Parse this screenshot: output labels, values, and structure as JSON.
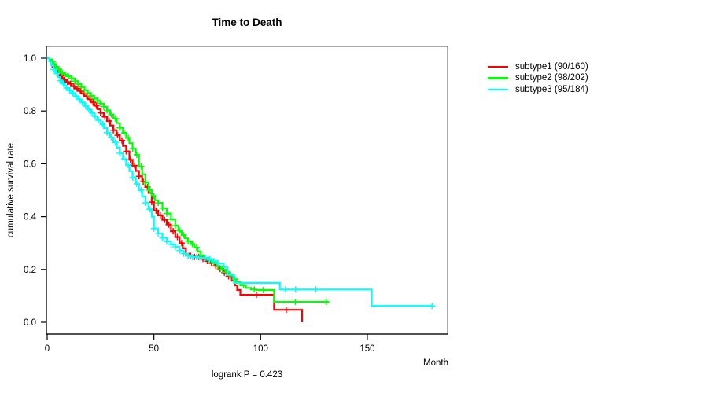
{
  "title": "Time to Death",
  "footer_text": "logrank P = 0.423",
  "axes": {
    "x": {
      "label": "Month",
      "tick_values": [
        0,
        50,
        100,
        150
      ]
    },
    "y": {
      "label": "cumulative survival rate",
      "tick_values": [
        0.0,
        0.2,
        0.4,
        0.6,
        0.8,
        1.0
      ],
      "tick_labels": [
        "0.0",
        "0.2",
        "0.4",
        "0.6",
        "0.8",
        "1.0"
      ]
    }
  },
  "chart_data": {
    "type": "line",
    "variant": "kaplan-meier-step-curves",
    "title": "Time to Death",
    "xlabel": "Month",
    "ylabel": "cumulative survival rate",
    "xlim": [
      0,
      188
    ],
    "ylim": [
      0.0,
      1.0
    ],
    "grid": false,
    "legend_position": "right-outside",
    "annotation": "logrank P = 0.423",
    "censor_mark": "plus",
    "series": [
      {
        "name": "subtype1 (90/160)",
        "color": "#ff0000",
        "points": [
          [
            0,
            1.0
          ],
          [
            1,
            0.99
          ],
          [
            2,
            0.978
          ],
          [
            3,
            0.966
          ],
          [
            4,
            0.954
          ],
          [
            5,
            0.943
          ],
          [
            6,
            0.933
          ],
          [
            7,
            0.925
          ],
          [
            8,
            0.917
          ],
          [
            9,
            0.91
          ],
          [
            10,
            0.903
          ],
          [
            11.5,
            0.894
          ],
          [
            13,
            0.885
          ],
          [
            14.5,
            0.876
          ],
          [
            16,
            0.866
          ],
          [
            17.5,
            0.856
          ],
          [
            19,
            0.845
          ],
          [
            20.5,
            0.833
          ],
          [
            22,
            0.82
          ],
          [
            23.5,
            0.807
          ],
          [
            25,
            0.793
          ],
          [
            26.5,
            0.778
          ],
          [
            28,
            0.762
          ],
          [
            29.5,
            0.745
          ],
          [
            31,
            0.727
          ],
          [
            32.5,
            0.708
          ],
          [
            34,
            0.688
          ],
          [
            35.5,
            0.668
          ],
          [
            37,
            0.647
          ],
          [
            38.5,
            0.615
          ],
          [
            40,
            0.593
          ],
          [
            41.5,
            0.573
          ],
          [
            43,
            0.553
          ],
          [
            44.5,
            0.532
          ],
          [
            46,
            0.512
          ],
          [
            47.5,
            0.49
          ],
          [
            49,
            0.455
          ],
          [
            50,
            0.423
          ],
          [
            52,
            0.405
          ],
          [
            54,
            0.388
          ],
          [
            56,
            0.37
          ],
          [
            58,
            0.345
          ],
          [
            60,
            0.323
          ],
          [
            62,
            0.3
          ],
          [
            63.5,
            0.28
          ],
          [
            65,
            0.26
          ],
          [
            67,
            0.252
          ],
          [
            69,
            0.248
          ],
          [
            72,
            0.24
          ],
          [
            74.5,
            0.232
          ],
          [
            76.5,
            0.224
          ],
          [
            78.5,
            0.214
          ],
          [
            80.5,
            0.202
          ],
          [
            82.5,
            0.188
          ],
          [
            84.5,
            0.174
          ],
          [
            86.5,
            0.157
          ],
          [
            88,
            0.14
          ],
          [
            89,
            0.122
          ],
          [
            90.5,
            0.104
          ],
          [
            106.3,
            0.047
          ],
          [
            119.4,
            0.0
          ]
        ],
        "end_month": 119.4,
        "censor_months": [
          3.5,
          5,
          6.5,
          8,
          9.5,
          11,
          12.5,
          14,
          15.5,
          17,
          18.5,
          20,
          21.5,
          23,
          25,
          27,
          29,
          31,
          33,
          35,
          37,
          39,
          41,
          43,
          45,
          47,
          49,
          51,
          53,
          55,
          57,
          59,
          61,
          63,
          65,
          67,
          69,
          71,
          73,
          75,
          77,
          79,
          81,
          83,
          85,
          98,
          112
        ]
      },
      {
        "name": "subtype2 (98/202)",
        "color": "#00ff00",
        "points": [
          [
            0,
            1.0
          ],
          [
            1,
            0.995
          ],
          [
            2,
            0.987
          ],
          [
            3,
            0.978
          ],
          [
            4,
            0.968
          ],
          [
            5,
            0.958
          ],
          [
            6,
            0.95
          ],
          [
            7,
            0.944
          ],
          [
            8,
            0.939
          ],
          [
            9,
            0.935
          ],
          [
            10,
            0.931
          ],
          [
            11.5,
            0.923
          ],
          [
            13,
            0.913
          ],
          [
            14.5,
            0.902
          ],
          [
            16,
            0.891
          ],
          [
            17.5,
            0.879
          ],
          [
            19,
            0.868
          ],
          [
            20.5,
            0.857
          ],
          [
            22,
            0.847
          ],
          [
            23.5,
            0.838
          ],
          [
            25,
            0.828
          ],
          [
            26.5,
            0.816
          ],
          [
            28,
            0.802
          ],
          [
            29.5,
            0.787
          ],
          [
            31,
            0.771
          ],
          [
            32.5,
            0.754
          ],
          [
            34,
            0.736
          ],
          [
            35.5,
            0.717
          ],
          [
            37,
            0.698
          ],
          [
            38.5,
            0.678
          ],
          [
            40,
            0.657
          ],
          [
            41.5,
            0.634
          ],
          [
            43,
            0.59
          ],
          [
            44.5,
            0.56
          ],
          [
            46,
            0.53
          ],
          [
            47.5,
            0.5
          ],
          [
            49,
            0.478
          ],
          [
            50.5,
            0.462
          ],
          [
            52,
            0.452
          ],
          [
            54,
            0.432
          ],
          [
            56,
            0.412
          ],
          [
            58,
            0.39
          ],
          [
            60,
            0.366
          ],
          [
            61.5,
            0.347
          ],
          [
            63,
            0.33
          ],
          [
            64.5,
            0.318
          ],
          [
            66,
            0.307
          ],
          [
            67.5,
            0.296
          ],
          [
            69,
            0.283
          ],
          [
            70.5,
            0.268
          ],
          [
            72,
            0.253
          ],
          [
            73.5,
            0.243
          ],
          [
            75.5,
            0.236
          ],
          [
            77.5,
            0.225
          ],
          [
            79.5,
            0.212
          ],
          [
            81.5,
            0.2
          ],
          [
            83.5,
            0.19
          ],
          [
            85.5,
            0.177
          ],
          [
            87,
            0.163
          ],
          [
            88.5,
            0.152
          ],
          [
            90.5,
            0.14
          ],
          [
            93,
            0.13
          ],
          [
            95.5,
            0.124
          ],
          [
            98,
            0.122
          ],
          [
            106.3,
            0.077
          ]
        ],
        "end_month": 131.6,
        "censor_months": [
          2.5,
          4,
          5.5,
          7,
          8.5,
          10,
          11.5,
          13,
          14.5,
          16,
          17.5,
          19,
          20.5,
          22,
          23.5,
          25,
          26.5,
          28,
          30,
          32,
          34,
          36,
          38,
          40,
          42,
          44,
          46,
          48,
          50,
          52,
          54,
          56,
          58,
          60,
          62,
          64,
          66,
          68,
          70,
          72,
          74,
          76,
          78,
          80,
          82,
          84,
          86,
          88,
          92,
          97,
          101.3,
          116.3,
          130.8
        ]
      },
      {
        "name": "subtype3 (95/184)",
        "color": "#00ffff",
        "points": [
          [
            0,
            1.0
          ],
          [
            1,
            0.988
          ],
          [
            2,
            0.972
          ],
          [
            3,
            0.957
          ],
          [
            4,
            0.942
          ],
          [
            5,
            0.928
          ],
          [
            6,
            0.915
          ],
          [
            7,
            0.904
          ],
          [
            8,
            0.895
          ],
          [
            9,
            0.887
          ],
          [
            10,
            0.879
          ],
          [
            11.5,
            0.868
          ],
          [
            13,
            0.856
          ],
          [
            14.5,
            0.844
          ],
          [
            16,
            0.832
          ],
          [
            17.5,
            0.819
          ],
          [
            19,
            0.806
          ],
          [
            20.5,
            0.793
          ],
          [
            22,
            0.779
          ],
          [
            23.5,
            0.765
          ],
          [
            25,
            0.75
          ],
          [
            26.5,
            0.735
          ],
          [
            28,
            0.718
          ],
          [
            29.5,
            0.7
          ],
          [
            31,
            0.681
          ],
          [
            32.5,
            0.661
          ],
          [
            34,
            0.64
          ],
          [
            35.5,
            0.618
          ],
          [
            37,
            0.595
          ],
          [
            38.5,
            0.572
          ],
          [
            40,
            0.548
          ],
          [
            41.5,
            0.524
          ],
          [
            43,
            0.5
          ],
          [
            44.5,
            0.476
          ],
          [
            46,
            0.452
          ],
          [
            47.5,
            0.428
          ],
          [
            49,
            0.4
          ],
          [
            50,
            0.355
          ],
          [
            52,
            0.337
          ],
          [
            54,
            0.32
          ],
          [
            56,
            0.306
          ],
          [
            58,
            0.295
          ],
          [
            60,
            0.286
          ],
          [
            62,
            0.272
          ],
          [
            64,
            0.26
          ],
          [
            66,
            0.251
          ],
          [
            68,
            0.247
          ],
          [
            71,
            0.244
          ],
          [
            75,
            0.239
          ],
          [
            78,
            0.231
          ],
          [
            80,
            0.223
          ],
          [
            82.5,
            0.209
          ],
          [
            84.5,
            0.18
          ],
          [
            87.5,
            0.149
          ],
          [
            109,
            0.124
          ],
          [
            152,
            0.062
          ]
        ],
        "end_month": 180.8,
        "censor_months": [
          3,
          4.5,
          6,
          7.5,
          9,
          10.5,
          12,
          13.5,
          15,
          16.5,
          18,
          19.5,
          21,
          22.5,
          24,
          26,
          28,
          30,
          32,
          34,
          36,
          38,
          40,
          42,
          44,
          46,
          48,
          50,
          52,
          54,
          56,
          58,
          60,
          62,
          64,
          66,
          68,
          70,
          72,
          74,
          76,
          78,
          80,
          111.7,
          116.4,
          125.9,
          180.3
        ]
      }
    ]
  }
}
